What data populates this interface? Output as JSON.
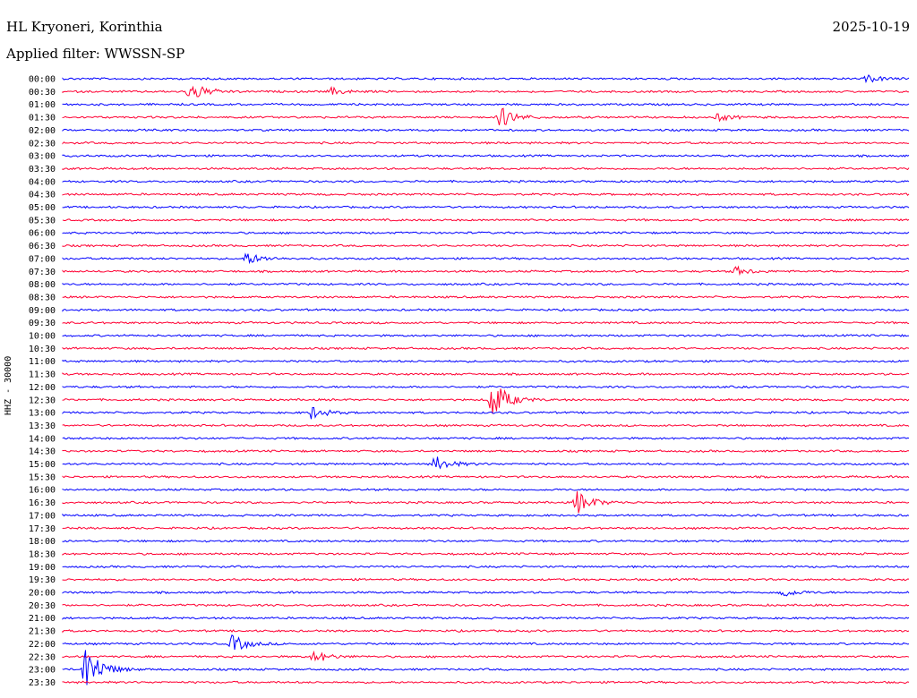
{
  "header": {
    "station": "HL Kryoneri, Korinthia",
    "date": "2025-10-19",
    "filter": "Applied filter: WWSSN-SP"
  },
  "chart_data": {
    "type": "line",
    "title": "HL Kryoneri, Korinthia",
    "ylabel": "HHZ - 30000",
    "colors": [
      "#0000ff",
      "#ff0033"
    ],
    "rows": [
      "00:00",
      "00:30",
      "01:00",
      "01:30",
      "02:00",
      "02:30",
      "03:00",
      "03:30",
      "04:00",
      "04:30",
      "05:00",
      "05:30",
      "06:00",
      "06:30",
      "07:00",
      "07:30",
      "08:00",
      "08:30",
      "09:00",
      "09:30",
      "10:00",
      "10:30",
      "11:00",
      "11:30",
      "12:00",
      "12:30",
      "13:00",
      "13:30",
      "14:00",
      "14:30",
      "15:00",
      "15:30",
      "16:00",
      "16:30",
      "17:00",
      "17:30",
      "18:00",
      "18:30",
      "19:00",
      "19:30",
      "20:00",
      "20:30",
      "21:00",
      "21:30",
      "22:00",
      "22:30",
      "23:00",
      "23:30"
    ],
    "x_range_minutes": [
      0,
      30
    ],
    "events": [
      {
        "row": "00:00",
        "minute": 28.5,
        "amplitude": 4
      },
      {
        "row": "00:30",
        "minute": 4.5,
        "amplitude": 12
      },
      {
        "row": "00:30",
        "minute": 9.5,
        "amplitude": 4
      },
      {
        "row": "01:30",
        "minute": 15.5,
        "amplitude": 12
      },
      {
        "row": "01:30",
        "minute": 23.2,
        "amplitude": 4
      },
      {
        "row": "07:00",
        "minute": 6.5,
        "amplitude": 7
      },
      {
        "row": "07:30",
        "minute": 23.8,
        "amplitude": 5
      },
      {
        "row": "12:30",
        "minute": 15.2,
        "amplitude": 24
      },
      {
        "row": "13:00",
        "minute": 8.8,
        "amplitude": 7
      },
      {
        "row": "15:00",
        "minute": 13.2,
        "amplitude": 9
      },
      {
        "row": "16:30",
        "minute": 18.2,
        "amplitude": 14
      },
      {
        "row": "20:00",
        "minute": 25.4,
        "amplitude": 6
      },
      {
        "row": "22:00",
        "minute": 6.0,
        "amplitude": 10
      },
      {
        "row": "22:30",
        "minute": 8.9,
        "amplitude": 7
      },
      {
        "row": "23:00",
        "minute": 0.8,
        "amplitude": 30
      }
    ]
  }
}
